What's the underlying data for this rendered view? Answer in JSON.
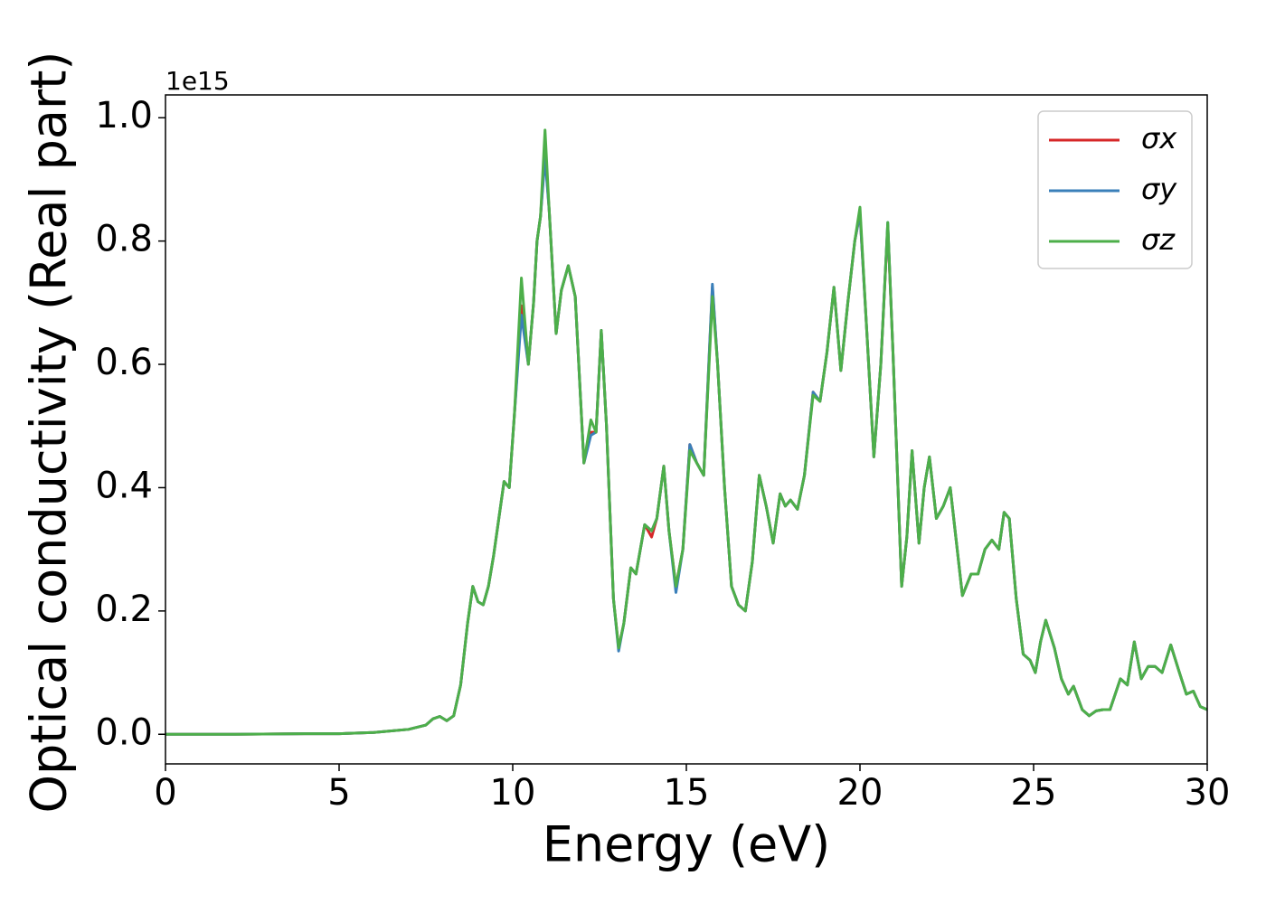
{
  "chart_data": {
    "type": "line",
    "x_label": "Energy (eV)",
    "y_label": "Optical conductivity (Real part)",
    "y_offset_label": "1e15",
    "xlim": [
      0,
      30
    ],
    "xticks": [
      0,
      5,
      10,
      15,
      20,
      25,
      30
    ],
    "ylim": [
      -0.048,
      1.037
    ],
    "yticks": [
      {
        "value": 0,
        "label": "0.0"
      },
      {
        "value": 0.2,
        "label": "0.2"
      },
      {
        "value": 0.4,
        "label": "0.4"
      },
      {
        "value": 0.6,
        "label": "0.6"
      },
      {
        "value": 0.8,
        "label": "0.8"
      },
      {
        "value": 1.0,
        "label": "1.0"
      }
    ],
    "legend": "upper right",
    "grid": false,
    "x": [
      0,
      2,
      4,
      5,
      6,
      7,
      7.5,
      7.7,
      7.9,
      8.1,
      8.3,
      8.5,
      8.7,
      8.85,
      9.0,
      9.15,
      9.3,
      9.45,
      9.6,
      9.75,
      9.9,
      10.05,
      10.25,
      10.45,
      10.6,
      10.7,
      10.8,
      10.93,
      11.05,
      11.25,
      11.4,
      11.6,
      11.8,
      12.05,
      12.25,
      12.4,
      12.55,
      12.7,
      12.9,
      13.05,
      13.2,
      13.4,
      13.55,
      13.8,
      14.0,
      14.15,
      14.35,
      14.5,
      14.7,
      14.9,
      15.1,
      15.3,
      15.5,
      15.75,
      15.9,
      16.1,
      16.3,
      16.5,
      16.7,
      16.9,
      17.1,
      17.3,
      17.5,
      17.7,
      17.85,
      18.0,
      18.2,
      18.4,
      18.65,
      18.85,
      19.05,
      19.25,
      19.45,
      19.65,
      19.85,
      20.0,
      20.2,
      20.4,
      20.6,
      20.8,
      20.95,
      21.2,
      21.35,
      21.5,
      21.7,
      21.85,
      22.0,
      22.2,
      22.4,
      22.6,
      22.8,
      22.95,
      23.2,
      23.4,
      23.6,
      23.8,
      24.0,
      24.15,
      24.3,
      24.5,
      24.7,
      24.9,
      25.05,
      25.2,
      25.35,
      25.6,
      25.8,
      26.0,
      26.15,
      26.4,
      26.6,
      26.8,
      27.0,
      27.2,
      27.5,
      27.7,
      27.9,
      28.1,
      28.3,
      28.5,
      28.7,
      28.95,
      29.2,
      29.4,
      29.6,
      29.8,
      30
    ],
    "series": [
      {
        "name": "σx",
        "color": "#d62728",
        "values": [
          0,
          0,
          0.001,
          0.001,
          0.003,
          0.008,
          0.015,
          0.025,
          0.029,
          0.022,
          0.03,
          0.08,
          0.18,
          0.24,
          0.215,
          0.21,
          0.24,
          0.29,
          0.35,
          0.41,
          0.4,
          0.52,
          0.695,
          0.6,
          0.7,
          0.8,
          0.84,
          0.945,
          0.85,
          0.65,
          0.72,
          0.76,
          0.71,
          0.44,
          0.49,
          0.49,
          0.655,
          0.5,
          0.22,
          0.14,
          0.18,
          0.27,
          0.26,
          0.34,
          0.32,
          0.35,
          0.435,
          0.33,
          0.24,
          0.3,
          0.47,
          0.44,
          0.42,
          0.725,
          0.6,
          0.4,
          0.24,
          0.21,
          0.2,
          0.28,
          0.42,
          0.37,
          0.31,
          0.39,
          0.37,
          0.38,
          0.365,
          0.42,
          0.555,
          0.54,
          0.62,
          0.725,
          0.59,
          0.7,
          0.8,
          0.845,
          0.65,
          0.45,
          0.6,
          0.825,
          0.62,
          0.24,
          0.32,
          0.46,
          0.31,
          0.4,
          0.45,
          0.35,
          0.37,
          0.4,
          0.3,
          0.225,
          0.26,
          0.26,
          0.3,
          0.315,
          0.3,
          0.36,
          0.35,
          0.22,
          0.13,
          0.12,
          0.1,
          0.15,
          0.185,
          0.14,
          0.09,
          0.065,
          0.078,
          0.04,
          0.03,
          0.038,
          0.04,
          0.04,
          0.09,
          0.08,
          0.15,
          0.09,
          0.11,
          0.11,
          0.1,
          0.145,
          0.1,
          0.065,
          0.07,
          0.045,
          0.04
        ]
      },
      {
        "name": "σy",
        "color": "#3a7fb9",
        "values": [
          0,
          0,
          0.001,
          0.001,
          0.003,
          0.008,
          0.015,
          0.025,
          0.029,
          0.022,
          0.03,
          0.08,
          0.18,
          0.24,
          0.215,
          0.21,
          0.24,
          0.29,
          0.35,
          0.41,
          0.4,
          0.52,
          0.68,
          0.6,
          0.7,
          0.8,
          0.84,
          0.935,
          0.85,
          0.65,
          0.72,
          0.76,
          0.71,
          0.44,
          0.485,
          0.49,
          0.655,
          0.5,
          0.22,
          0.135,
          0.18,
          0.27,
          0.26,
          0.34,
          0.33,
          0.35,
          0.435,
          0.33,
          0.23,
          0.3,
          0.47,
          0.44,
          0.42,
          0.73,
          0.6,
          0.4,
          0.24,
          0.21,
          0.2,
          0.28,
          0.42,
          0.37,
          0.31,
          0.39,
          0.37,
          0.38,
          0.365,
          0.42,
          0.555,
          0.54,
          0.62,
          0.725,
          0.59,
          0.7,
          0.8,
          0.845,
          0.65,
          0.45,
          0.6,
          0.83,
          0.62,
          0.24,
          0.32,
          0.46,
          0.31,
          0.4,
          0.45,
          0.35,
          0.37,
          0.4,
          0.3,
          0.225,
          0.26,
          0.26,
          0.3,
          0.315,
          0.3,
          0.36,
          0.35,
          0.22,
          0.13,
          0.12,
          0.1,
          0.15,
          0.185,
          0.14,
          0.09,
          0.065,
          0.078,
          0.04,
          0.03,
          0.038,
          0.04,
          0.04,
          0.09,
          0.08,
          0.15,
          0.09,
          0.11,
          0.11,
          0.1,
          0.145,
          0.1,
          0.065,
          0.07,
          0.045,
          0.04
        ]
      },
      {
        "name": "σz",
        "color": "#4daf4a",
        "values": [
          0,
          0,
          0.001,
          0.001,
          0.003,
          0.008,
          0.015,
          0.025,
          0.029,
          0.022,
          0.03,
          0.08,
          0.18,
          0.24,
          0.215,
          0.21,
          0.24,
          0.29,
          0.35,
          0.41,
          0.4,
          0.52,
          0.74,
          0.6,
          0.7,
          0.8,
          0.84,
          0.98,
          0.85,
          0.65,
          0.72,
          0.76,
          0.71,
          0.44,
          0.51,
          0.49,
          0.655,
          0.5,
          0.22,
          0.14,
          0.18,
          0.27,
          0.26,
          0.34,
          0.33,
          0.35,
          0.435,
          0.33,
          0.24,
          0.3,
          0.46,
          0.44,
          0.42,
          0.71,
          0.6,
          0.4,
          0.24,
          0.21,
          0.2,
          0.28,
          0.42,
          0.37,
          0.31,
          0.39,
          0.37,
          0.38,
          0.365,
          0.42,
          0.55,
          0.54,
          0.62,
          0.725,
          0.59,
          0.7,
          0.8,
          0.855,
          0.65,
          0.45,
          0.6,
          0.83,
          0.62,
          0.24,
          0.32,
          0.46,
          0.31,
          0.4,
          0.45,
          0.35,
          0.37,
          0.4,
          0.3,
          0.225,
          0.26,
          0.26,
          0.3,
          0.315,
          0.3,
          0.36,
          0.35,
          0.22,
          0.13,
          0.12,
          0.1,
          0.15,
          0.185,
          0.14,
          0.09,
          0.065,
          0.078,
          0.04,
          0.03,
          0.038,
          0.04,
          0.04,
          0.09,
          0.08,
          0.15,
          0.09,
          0.11,
          0.11,
          0.1,
          0.145,
          0.1,
          0.065,
          0.07,
          0.045,
          0.04
        ]
      }
    ]
  }
}
